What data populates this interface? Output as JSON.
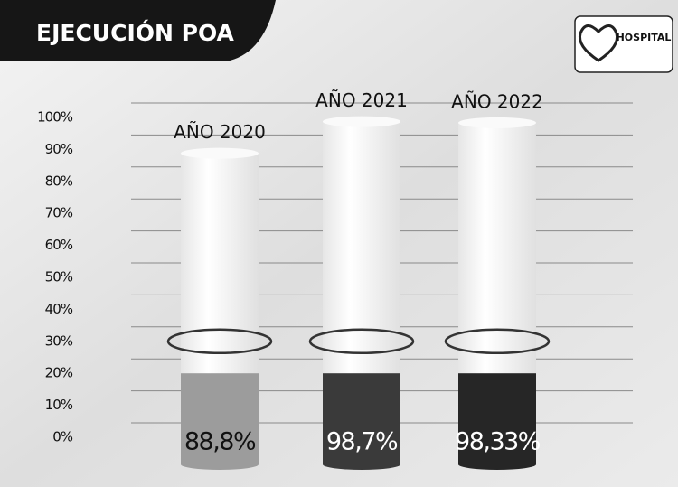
{
  "chart_data": {
    "type": "bar",
    "title": "EJECUCIÓN POA",
    "logo_text": "HOSPITAL",
    "categories": [
      "AÑO 2020",
      "AÑO 2021",
      "AÑO 2022"
    ],
    "values": [
      88.8,
      98.7,
      98.33
    ],
    "value_labels": [
      "88,8%",
      "98,7%",
      "98,33%"
    ],
    "colors": [
      "#9c9c9c",
      "#3a3a3a",
      "#262626"
    ],
    "ylim": [
      0,
      100
    ],
    "yticks": [
      {
        "value": 0,
        "label": "0%"
      },
      {
        "value": 10,
        "label": "10%"
      },
      {
        "value": 20,
        "label": "20%"
      },
      {
        "value": 30,
        "label": "30%"
      },
      {
        "value": 40,
        "label": "40%"
      },
      {
        "value": 50,
        "label": "50%"
      },
      {
        "value": 60,
        "label": "60%"
      },
      {
        "value": 70,
        "label": "70%"
      },
      {
        "value": 80,
        "label": "80%"
      },
      {
        "value": 90,
        "label": "90%"
      },
      {
        "value": 100,
        "label": "100%"
      }
    ],
    "grid": true
  }
}
